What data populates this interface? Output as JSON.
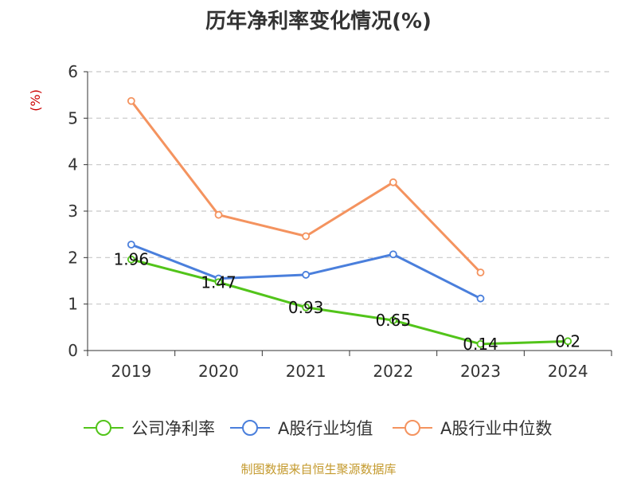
{
  "chart_data": {
    "type": "line",
    "title": "历年净利率变化情况(%)",
    "ylabel": "(%)",
    "xlabel": "",
    "categories": [
      "2019",
      "2020",
      "2021",
      "2022",
      "2023",
      "2024"
    ],
    "ylim": [
      0,
      6
    ],
    "yticks": [
      0,
      1,
      2,
      3,
      4,
      5,
      6
    ],
    "grid": true,
    "legend_position": "bottom",
    "series": [
      {
        "name": "公司净利率",
        "color": "#52c41a",
        "values": [
          1.96,
          1.47,
          0.93,
          0.65,
          0.14,
          0.2
        ],
        "labels": [
          "1.96",
          "1.47",
          "0.93",
          "0.65",
          "0.14",
          "0.2"
        ]
      },
      {
        "name": "A股行业均值",
        "color": "#4a7fdc",
        "values": [
          2.28,
          1.55,
          1.63,
          2.07,
          1.12,
          null
        ]
      },
      {
        "name": "A股行业中位数",
        "color": "#f4935f",
        "values": [
          5.37,
          2.92,
          2.46,
          3.62,
          1.68,
          null
        ]
      }
    ],
    "source": "制图数据来自恒生聚源数据库"
  }
}
